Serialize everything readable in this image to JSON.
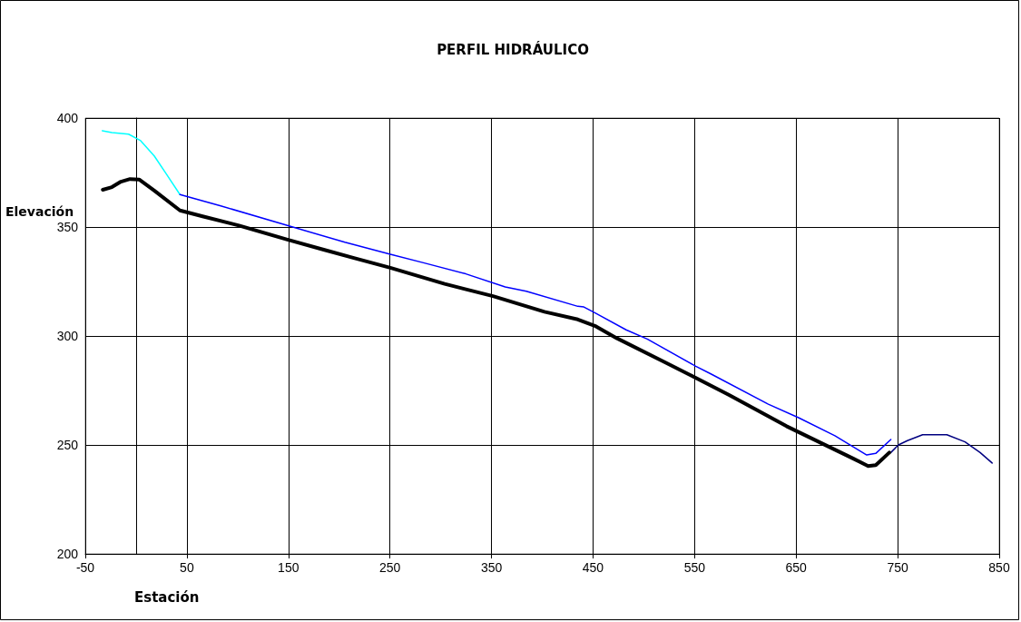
{
  "chart_data": {
    "type": "line",
    "title": "PERFIL HIDRÁULICO",
    "xlabel": "Estación",
    "ylabel": "Elevación",
    "xlim": [
      -50,
      850
    ],
    "xticks": [
      -50,
      50,
      150,
      250,
      350,
      450,
      550,
      650,
      750,
      850
    ],
    "ylim": [
      200,
      400
    ],
    "yticks": [
      200,
      250,
      300,
      350,
      400
    ],
    "grid": true,
    "marker": "none",
    "line_style": "solid",
    "series": [
      {
        "color": "#00ffff",
        "x": [
          -33.3,
          -23.8,
          -7.4,
          4.5,
          17.9,
          29.8,
          43.2
        ],
        "values": [
          394.2,
          393.3,
          392.6,
          389.6,
          382.6,
          374.3,
          364.9
        ]
      },
      {
        "color": "#0000ff",
        "x": [
          43.2,
          83.4,
          152,
          205.6,
          250.3,
          283,
          324.7,
          363.5,
          384.3,
          435,
          441,
          452.9,
          482.6,
          503.4,
          551.2,
          566,
          622.6,
          652.4,
          688.2,
          719.5,
          728.4,
          743.3
        ],
        "values": [
          364.9,
          359.7,
          350.3,
          343,
          337.5,
          333.6,
          328.5,
          322.5,
          320.5,
          313.6,
          313.3,
          310.4,
          302.8,
          298.6,
          286.1,
          282.6,
          268.7,
          262.5,
          254.2,
          245.4,
          246.1,
          252.5
        ]
      },
      {
        "color": "#000000",
        "x": [
          -32.8,
          -23.8,
          -14.9,
          -6,
          3,
          17.9,
          43.2,
          65.5,
          101.3,
          149,
          184.8,
          214.5,
          250.3,
          303.9,
          351.5,
          402.2,
          435,
          452.9,
          473.7,
          521.3,
          545.2,
          584,
          640.5,
          706,
          720.9,
          728.4,
          741.8
        ],
        "values": [
          367.1,
          368.3,
          370.8,
          372,
          371.8,
          366.7,
          357.6,
          354.9,
          350.7,
          344.2,
          339.6,
          335.8,
          331.3,
          323.9,
          318.3,
          311.1,
          307.6,
          304.4,
          298.9,
          287.8,
          282.2,
          272.9,
          258.6,
          243.8,
          240.3,
          240.7,
          246.5
        ]
      },
      {
        "color": "#000080",
        "x": [
          743.3,
          750.7,
          759.6,
          774.6,
          798.4,
          816.3,
          831.2,
          843
        ],
        "values": [
          246.5,
          250,
          252,
          254.7,
          254.7,
          251.4,
          246.5,
          241.7
        ]
      }
    ]
  }
}
